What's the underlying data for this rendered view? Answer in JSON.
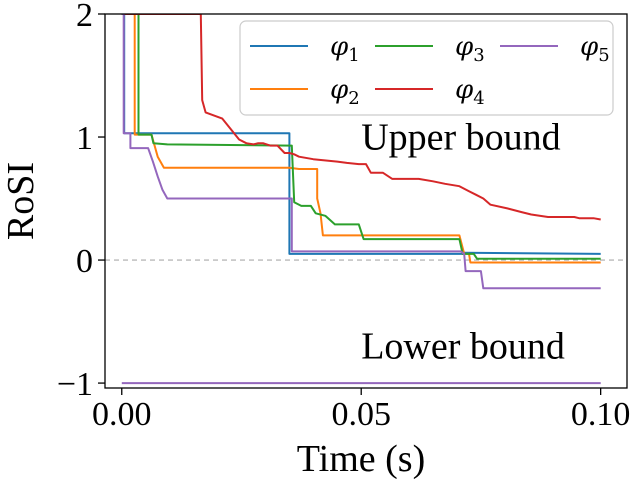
{
  "chart_data": {
    "type": "line",
    "title": "",
    "xlabel": "Time (s)",
    "ylabel": "RoSI",
    "xlim": [
      -0.0035,
      0.1055
    ],
    "ylim": [
      -1.04,
      2.0
    ],
    "xticks": [
      0.0,
      0.05,
      0.1
    ],
    "xtick_labels": [
      "0.00",
      "0.05",
      "0.10"
    ],
    "yticks": [
      -1,
      0,
      1,
      2
    ],
    "ytick_labels": [
      "−1",
      "0",
      "1",
      "2"
    ],
    "reference_line": {
      "y": 0,
      "style": "dashed",
      "color": "#aaaaaa"
    },
    "annotations": [
      {
        "text": "Upper bound",
        "x": 0.05,
        "y": 0.9
      },
      {
        "text": "Lower bound",
        "x": 0.05,
        "y": -0.8
      }
    ],
    "legend": {
      "location": "top-right",
      "columns": 3
    },
    "series": [
      {
        "name": "φ",
        "sub": "1",
        "color": "#1f77b4",
        "points": [
          [
            0.0,
            2.0
          ],
          [
            0.0005,
            2.0
          ],
          [
            0.0005,
            1.03
          ],
          [
            0.035,
            1.03
          ],
          [
            0.035,
            0.05
          ],
          [
            0.0715,
            0.05
          ],
          [
            0.0715,
            0.06
          ],
          [
            0.1,
            0.05
          ]
        ]
      },
      {
        "name": "φ",
        "sub": "2",
        "color": "#ff7f0e",
        "points": [
          [
            0.0,
            2.0
          ],
          [
            0.0027,
            2.0
          ],
          [
            0.0027,
            1.02
          ],
          [
            0.0062,
            1.02
          ],
          [
            0.0075,
            0.84
          ],
          [
            0.0088,
            0.75
          ],
          [
            0.035,
            0.75
          ],
          [
            0.037,
            0.74
          ],
          [
            0.0408,
            0.74
          ],
          [
            0.0408,
            0.5
          ],
          [
            0.0415,
            0.38
          ],
          [
            0.042,
            0.2
          ],
          [
            0.0705,
            0.2
          ],
          [
            0.0715,
            0.05
          ],
          [
            0.0725,
            0.05
          ],
          [
            0.0728,
            -0.02
          ],
          [
            0.1,
            -0.02
          ]
        ]
      },
      {
        "name": "φ",
        "sub": "3",
        "color": "#2ca02c",
        "points": [
          [
            0.0,
            2.0
          ],
          [
            0.0035,
            2.0
          ],
          [
            0.0035,
            1.02
          ],
          [
            0.0062,
            1.02
          ],
          [
            0.0066,
            0.95
          ],
          [
            0.0095,
            0.94
          ],
          [
            0.0355,
            0.93
          ],
          [
            0.036,
            0.47
          ],
          [
            0.0375,
            0.44
          ],
          [
            0.0395,
            0.44
          ],
          [
            0.0405,
            0.38
          ],
          [
            0.0425,
            0.36
          ],
          [
            0.0445,
            0.29
          ],
          [
            0.0495,
            0.29
          ],
          [
            0.0505,
            0.17
          ],
          [
            0.0705,
            0.17
          ],
          [
            0.0712,
            0.05
          ],
          [
            0.0735,
            0.05
          ],
          [
            0.0742,
            0.01
          ],
          [
            0.1,
            0.01
          ]
        ]
      },
      {
        "name": "φ",
        "sub": "4",
        "color": "#d62728",
        "points": [
          [
            0.0,
            2.0
          ],
          [
            0.0165,
            2.0
          ],
          [
            0.0168,
            1.3
          ],
          [
            0.0175,
            1.2
          ],
          [
            0.021,
            1.15
          ],
          [
            0.0245,
            0.98
          ],
          [
            0.026,
            0.95
          ],
          [
            0.0275,
            0.94
          ],
          [
            0.0285,
            0.95
          ],
          [
            0.0295,
            0.95
          ],
          [
            0.031,
            0.93
          ],
          [
            0.0325,
            0.93
          ],
          [
            0.034,
            0.87
          ],
          [
            0.035,
            0.87
          ],
          [
            0.036,
            0.86
          ],
          [
            0.037,
            0.84
          ],
          [
            0.04,
            0.82
          ],
          [
            0.045,
            0.8
          ],
          [
            0.047,
            0.79
          ],
          [
            0.0495,
            0.78
          ],
          [
            0.051,
            0.78
          ],
          [
            0.052,
            0.71
          ],
          [
            0.0545,
            0.71
          ],
          [
            0.0565,
            0.66
          ],
          [
            0.062,
            0.66
          ],
          [
            0.065,
            0.64
          ],
          [
            0.0675,
            0.62
          ],
          [
            0.0705,
            0.6
          ],
          [
            0.0715,
            0.58
          ],
          [
            0.0725,
            0.56
          ],
          [
            0.074,
            0.53
          ],
          [
            0.0755,
            0.5
          ],
          [
            0.077,
            0.45
          ],
          [
            0.0805,
            0.42
          ],
          [
            0.0835,
            0.39
          ],
          [
            0.0855,
            0.37
          ],
          [
            0.089,
            0.35
          ],
          [
            0.0945,
            0.35
          ],
          [
            0.0955,
            0.34
          ],
          [
            0.0985,
            0.34
          ],
          [
            0.1,
            0.33
          ]
        ]
      },
      {
        "name": "φ",
        "sub": "5",
        "color": "#9467bd",
        "points": [
          [
            0.0,
            -1.0
          ],
          [
            0.1,
            -1.0
          ],
          [
            null,
            null
          ],
          [
            0.0,
            2.0
          ],
          [
            0.0004,
            2.0
          ],
          [
            0.0004,
            1.03
          ],
          [
            0.0018,
            1.03
          ],
          [
            0.0018,
            0.91
          ],
          [
            0.0055,
            0.91
          ],
          [
            0.0065,
            0.8
          ],
          [
            0.0075,
            0.68
          ],
          [
            0.0085,
            0.57
          ],
          [
            0.0095,
            0.5
          ],
          [
            0.0355,
            0.5
          ],
          [
            0.0355,
            0.07
          ],
          [
            0.0708,
            0.07
          ],
          [
            0.0715,
            0.05
          ],
          [
            0.0718,
            -0.09
          ],
          [
            0.075,
            -0.09
          ],
          [
            0.0755,
            -0.23
          ],
          [
            0.1,
            -0.23
          ]
        ]
      }
    ]
  }
}
